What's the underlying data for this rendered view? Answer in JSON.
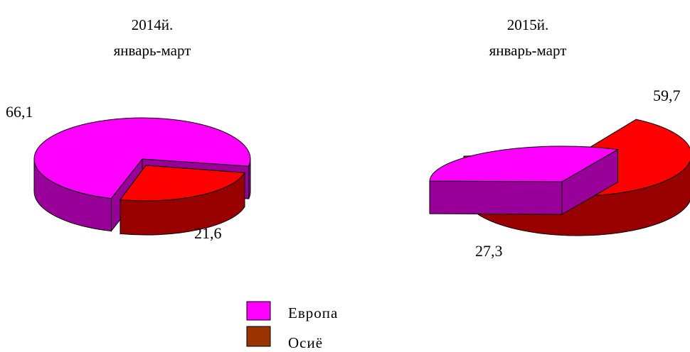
{
  "colors": {
    "europe_top": "#FF00FF",
    "europe_side": "#990099",
    "asia_top": "#FF0000",
    "asia_side": "#990000",
    "legend_asia": "#993300",
    "outline": "#000000"
  },
  "legend": [
    {
      "label": "Европа",
      "color_key": "europe_top"
    },
    {
      "label": "Осиё",
      "color_key": "legend_asia"
    }
  ],
  "chart_data": [
    {
      "type": "pie",
      "title": [
        "2014й.",
        "январь-март"
      ],
      "slices": [
        {
          "name": "Европа",
          "value": 66.1,
          "label": "66,1"
        },
        {
          "name": "Осиё",
          "value": 21.6,
          "label": "21,6"
        }
      ]
    },
    {
      "type": "pie",
      "title": [
        "2015й.",
        "январь-март"
      ],
      "slices": [
        {
          "name": "Европа",
          "value": 27.3,
          "label": "27,3"
        },
        {
          "name": "Осиё",
          "value": 59.7,
          "label": "59,7"
        }
      ]
    }
  ]
}
